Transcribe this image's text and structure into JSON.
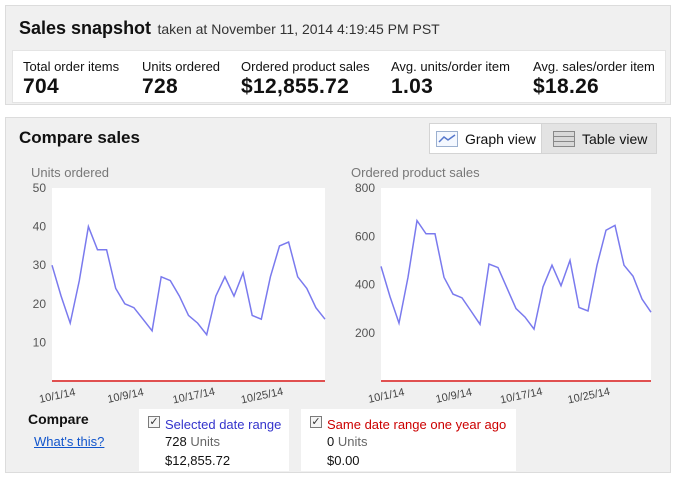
{
  "snapshot": {
    "title": "Sales snapshot",
    "subtitle": "taken at November 11, 2014 4:19:45 PM PST",
    "metrics": [
      {
        "label": "Total order items",
        "value": "704"
      },
      {
        "label": "Units ordered",
        "value": "728"
      },
      {
        "label": "Ordered product sales",
        "value": "$12,855.72"
      },
      {
        "label": "Avg. units/order item",
        "value": "1.03"
      },
      {
        "label": "Avg. sales/order item",
        "value": "$18.26"
      }
    ]
  },
  "compare": {
    "title": "Compare sales",
    "graph_view_label": "Graph view",
    "table_view_label": "Table view",
    "compare_label": "Compare",
    "whats_this_label": "What's this?",
    "selected": {
      "name": "Selected date range",
      "units": "728",
      "units_word": "Units",
      "sales": "$12,855.72",
      "color": "#3333cc"
    },
    "prior": {
      "name": "Same date range one year ago",
      "units": "0",
      "units_word": "Units",
      "sales": "$0.00",
      "color": "#cc0000"
    }
  },
  "chart_data": [
    {
      "type": "line",
      "title": "Units ordered",
      "x_ticks": [
        "10/1/14",
        "10/9/14",
        "10/17/14",
        "10/25/14"
      ],
      "ylim": [
        0,
        50
      ],
      "y_ticks": [
        10,
        20,
        30,
        40,
        50
      ],
      "grid": false,
      "series": [
        {
          "name": "Selected date range",
          "color": "#7a7aee",
          "values": [
            30,
            22,
            15,
            26,
            40,
            34,
            34,
            24,
            20,
            19,
            16,
            13,
            27,
            26,
            22,
            17,
            15,
            12,
            22,
            27,
            22,
            28,
            17,
            16,
            27,
            35,
            36,
            27,
            24,
            19,
            16
          ]
        },
        {
          "name": "Same date range one year ago",
          "color": "#e05050",
          "values": [
            0,
            0,
            0,
            0,
            0,
            0,
            0,
            0,
            0,
            0,
            0,
            0,
            0,
            0,
            0,
            0,
            0,
            0,
            0,
            0,
            0,
            0,
            0,
            0,
            0,
            0,
            0,
            0,
            0,
            0,
            0
          ]
        }
      ]
    },
    {
      "type": "line",
      "title": "Ordered product sales",
      "x_ticks": [
        "10/1/14",
        "10/9/14",
        "10/17/14",
        "10/25/14"
      ],
      "ylim": [
        0,
        800
      ],
      "y_ticks": [
        200,
        400,
        600,
        800
      ],
      "grid": false,
      "series": [
        {
          "name": "Selected date range",
          "color": "#7a7aee",
          "values": [
            475,
            350,
            240,
            430,
            665,
            610,
            610,
            430,
            360,
            345,
            290,
            235,
            485,
            470,
            385,
            300,
            265,
            215,
            390,
            480,
            395,
            500,
            305,
            290,
            480,
            625,
            645,
            480,
            435,
            340,
            285
          ]
        },
        {
          "name": "Same date range one year ago",
          "color": "#e05050",
          "values": [
            0,
            0,
            0,
            0,
            0,
            0,
            0,
            0,
            0,
            0,
            0,
            0,
            0,
            0,
            0,
            0,
            0,
            0,
            0,
            0,
            0,
            0,
            0,
            0,
            0,
            0,
            0,
            0,
            0,
            0,
            0
          ]
        }
      ]
    }
  ]
}
